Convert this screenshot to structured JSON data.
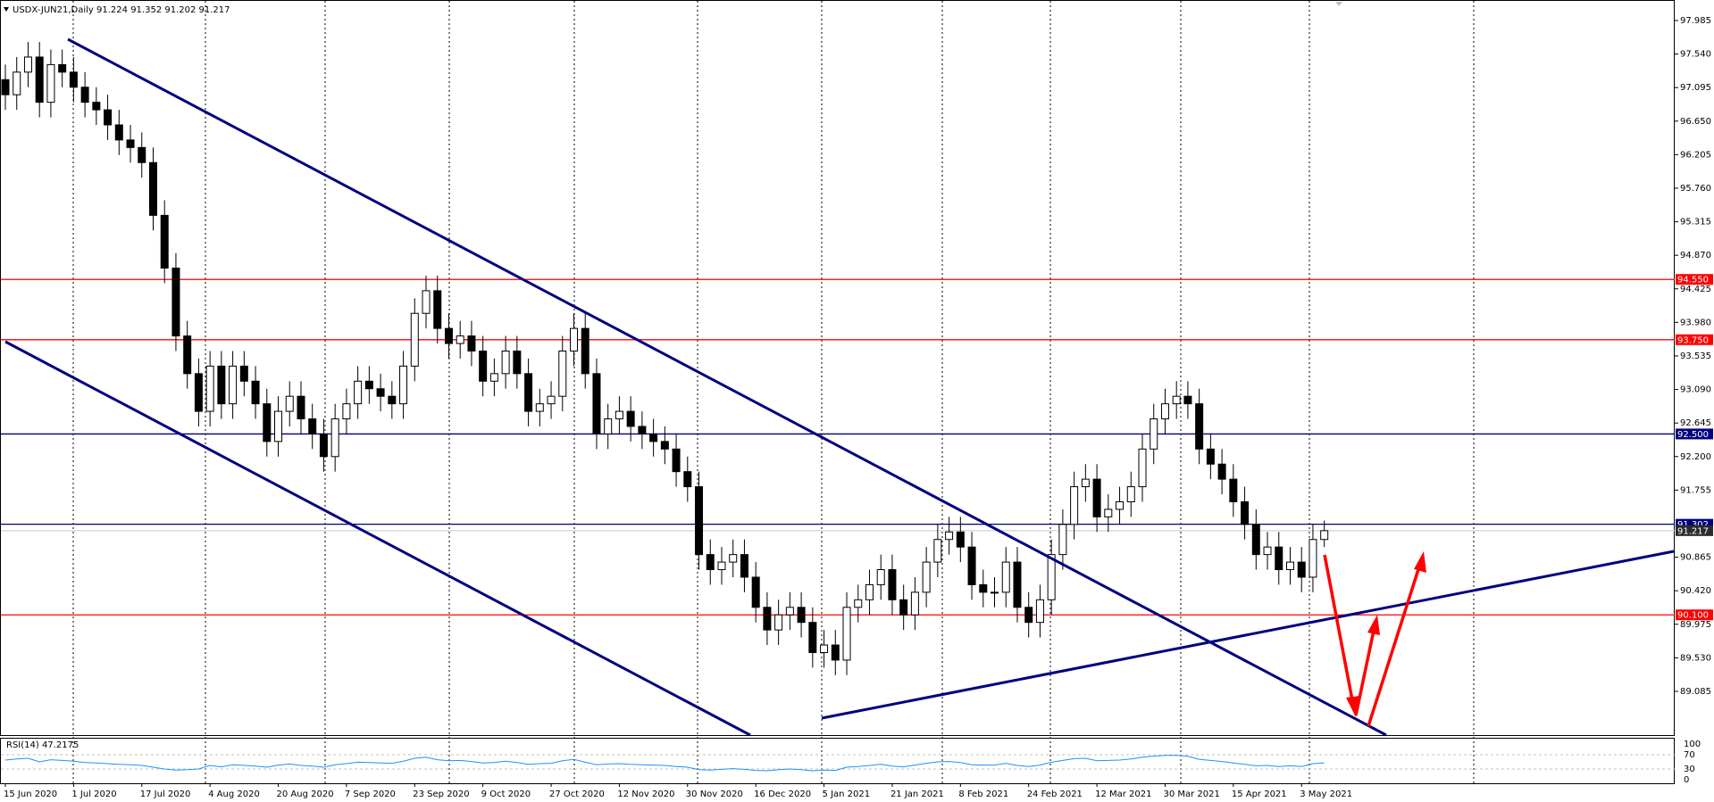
{
  "chart_data": {
    "type": "candlestick",
    "title": "USDX-JUN21,Daily  91.224 91.352 91.202 91.217",
    "categories": [
      "15 Jun 2020",
      null,
      null,
      null,
      null,
      null,
      "1 Jul 2020",
      null,
      null,
      null,
      null,
      null,
      "17 Jul 2020",
      null,
      null,
      null,
      null,
      null,
      "4 Aug 2020",
      null,
      null,
      null,
      null,
      null,
      "20 Aug 2020",
      null,
      null,
      null,
      null,
      null,
      "7 Sep 2020",
      null,
      null,
      null,
      null,
      null,
      "23 Sep 2020",
      null,
      null,
      null,
      null,
      null,
      "9 Oct 2020",
      null,
      null,
      null,
      null,
      null,
      "27 Oct 2020",
      null,
      null,
      null,
      null,
      null,
      "12 Nov 2020",
      null,
      null,
      null,
      null,
      null,
      "30 Nov 2020",
      null,
      null,
      null,
      null,
      null,
      "16 Dec 2020",
      null,
      null,
      null,
      null,
      null,
      "5 Jan 2021",
      null,
      null,
      null,
      null,
      null,
      "21 Jan 2021",
      null,
      null,
      null,
      null,
      null,
      "8 Feb 2021",
      null,
      null,
      null,
      null,
      null,
      "24 Feb 2021",
      null,
      null,
      null,
      null,
      null,
      "12 Mar 2021",
      null,
      null,
      null,
      null,
      null,
      "30 Mar 2021",
      null,
      null,
      null,
      null,
      null,
      "15 Apr 2021",
      null,
      null,
      null,
      null,
      null,
      "3 May 2021",
      null,
      null
    ],
    "open": [
      97.2,
      97.0,
      97.3,
      97.5,
      96.9,
      97.4,
      97.3,
      97.1,
      96.9,
      96.8,
      96.6,
      96.4,
      96.3,
      96.1,
      95.4,
      94.7,
      93.8,
      93.3,
      92.8,
      93.4,
      92.9,
      93.4,
      93.2,
      92.9,
      92.4,
      92.8,
      93.0,
      92.7,
      92.5,
      92.2,
      92.7,
      92.9,
      93.2,
      93.1,
      93.0,
      92.9,
      93.4,
      94.1,
      94.4,
      93.9,
      93.7,
      93.8,
      93.6,
      93.2,
      93.3,
      93.6,
      93.3,
      92.8,
      92.9,
      93.0,
      93.6,
      93.9,
      93.3,
      92.5,
      92.7,
      92.8,
      92.6,
      92.5,
      92.4,
      92.3,
      92.0,
      91.8,
      90.9,
      90.7,
      90.8,
      90.9,
      90.6,
      90.2,
      89.9,
      90.1,
      90.2,
      90.0,
      89.6,
      89.7,
      89.5,
      90.2,
      90.3,
      90.5,
      90.7,
      90.3,
      90.1,
      90.4,
      90.8,
      91.1,
      91.2,
      91.0,
      90.5,
      90.4,
      90.4,
      90.8,
      90.2,
      90.0,
      90.3,
      90.9,
      91.3,
      91.8,
      91.9,
      91.4,
      91.5,
      91.6,
      91.8,
      92.3,
      92.7,
      92.9,
      93.0,
      92.9,
      92.3,
      92.1,
      91.9,
      91.6,
      91.3,
      90.9,
      91.0,
      90.7,
      90.8,
      90.6,
      91.1
    ],
    "high": [
      97.4,
      97.5,
      97.7,
      97.7,
      97.6,
      97.6,
      97.5,
      97.3,
      97.1,
      97.0,
      96.8,
      96.6,
      96.5,
      96.3,
      95.6,
      94.9,
      94.0,
      93.5,
      93.6,
      93.6,
      93.6,
      93.6,
      93.4,
      93.1,
      93.0,
      93.2,
      93.2,
      92.9,
      92.7,
      92.9,
      93.1,
      93.4,
      93.4,
      93.3,
      93.2,
      93.6,
      94.3,
      94.6,
      94.6,
      94.1,
      94.0,
      94.0,
      93.8,
      93.5,
      93.8,
      93.8,
      93.5,
      93.1,
      93.2,
      93.8,
      94.1,
      94.1,
      93.5,
      92.9,
      93.0,
      93.0,
      92.8,
      92.7,
      92.6,
      92.5,
      92.2,
      92.0,
      91.1,
      91.0,
      91.1,
      91.1,
      90.8,
      90.4,
      90.3,
      90.4,
      90.4,
      90.2,
      89.9,
      89.9,
      90.4,
      90.5,
      90.7,
      90.9,
      90.9,
      90.5,
      90.6,
      91.0,
      91.3,
      91.4,
      91.4,
      91.2,
      90.7,
      90.6,
      91.0,
      91.0,
      90.4,
      90.5,
      91.1,
      91.5,
      92.0,
      92.1,
      92.1,
      91.7,
      91.8,
      92.0,
      92.5,
      92.9,
      93.1,
      93.2,
      93.2,
      93.1,
      92.5,
      92.3,
      92.1,
      91.8,
      91.5,
      91.2,
      91.2,
      91.0,
      91.0,
      91.3,
      91.352
    ],
    "low": [
      96.8,
      96.8,
      97.1,
      96.7,
      96.7,
      97.1,
      96.9,
      96.7,
      96.6,
      96.4,
      96.2,
      96.1,
      95.9,
      95.2,
      94.5,
      93.6,
      93.1,
      92.6,
      92.6,
      92.7,
      92.7,
      93.0,
      92.7,
      92.2,
      92.2,
      92.6,
      92.5,
      92.3,
      92.0,
      92.0,
      92.5,
      92.7,
      92.9,
      92.8,
      92.7,
      92.7,
      93.2,
      93.9,
      93.7,
      93.5,
      93.5,
      93.4,
      93.0,
      93.0,
      93.1,
      93.1,
      92.6,
      92.6,
      92.7,
      92.8,
      93.4,
      93.1,
      92.3,
      92.3,
      92.5,
      92.4,
      92.3,
      92.2,
      92.1,
      91.8,
      91.6,
      90.7,
      90.5,
      90.5,
      90.6,
      90.4,
      90.0,
      89.7,
      89.7,
      89.9,
      89.8,
      89.4,
      89.4,
      89.3,
      89.3,
      90.0,
      90.1,
      90.3,
      90.1,
      89.9,
      89.9,
      90.2,
      90.6,
      90.9,
      90.8,
      90.3,
      90.2,
      90.2,
      90.2,
      90.0,
      89.8,
      89.8,
      90.1,
      90.7,
      91.1,
      91.6,
      91.2,
      91.2,
      91.3,
      91.4,
      91.6,
      92.1,
      92.5,
      92.7,
      92.7,
      92.1,
      91.9,
      91.7,
      91.4,
      91.1,
      90.7,
      90.7,
      90.5,
      90.5,
      90.4,
      90.4,
      91.0
    ],
    "close": [
      97.0,
      97.3,
      97.5,
      96.9,
      97.4,
      97.3,
      97.1,
      96.9,
      96.8,
      96.6,
      96.4,
      96.3,
      96.1,
      95.4,
      94.7,
      93.8,
      93.3,
      92.8,
      93.4,
      92.9,
      93.4,
      93.2,
      92.9,
      92.4,
      92.8,
      93.0,
      92.7,
      92.5,
      92.2,
      92.7,
      92.9,
      93.2,
      93.1,
      93.0,
      92.9,
      93.4,
      94.1,
      94.4,
      93.9,
      93.7,
      93.8,
      93.6,
      93.2,
      93.3,
      93.6,
      93.3,
      92.8,
      92.9,
      93.0,
      93.6,
      93.9,
      93.3,
      92.5,
      92.7,
      92.8,
      92.6,
      92.5,
      92.4,
      92.3,
      92.0,
      91.8,
      90.9,
      90.7,
      90.8,
      90.9,
      90.6,
      90.2,
      89.9,
      90.1,
      90.2,
      90.0,
      89.6,
      89.7,
      89.5,
      90.2,
      90.3,
      90.5,
      90.7,
      90.3,
      90.1,
      90.4,
      90.8,
      91.1,
      91.2,
      91.0,
      90.5,
      90.4,
      90.4,
      90.8,
      90.2,
      90.0,
      90.3,
      90.9,
      91.3,
      91.8,
      91.9,
      91.4,
      91.5,
      91.6,
      91.8,
      92.3,
      92.7,
      92.9,
      93.0,
      92.9,
      92.3,
      92.1,
      91.9,
      91.6,
      91.3,
      90.9,
      91.0,
      90.7,
      90.8,
      90.6,
      91.1,
      91.217
    ],
    "up_color": "#ffffff",
    "down_color": "#000000",
    "ylim": [
      88.505,
      98.245
    ],
    "yticks": [
      97.985,
      {
        "value": 97.54,
        "label": "97.540"
      },
      97.095,
      {
        "value": 96.65,
        "label": "96.650"
      },
      96.205,
      {
        "value": 95.76,
        "label": "95.760"
      },
      95.315,
      {
        "value": 94.87,
        "label": "94.870"
      },
      94.425,
      {
        "value": 93.98,
        "label": "93.980"
      },
      93.535,
      {
        "value": 93.09,
        "label": "93.090"
      },
      92.645,
      {
        "value": 92.2,
        "label": "92.200"
      },
      91.755,
      90.865,
      {
        "value": 90.42,
        "label": "90.420"
      },
      89.975,
      {
        "value": 89.53,
        "label": "89.530"
      },
      89.085
    ],
    "levels": [
      {
        "value": 94.55,
        "label": "94.550",
        "color": "#ff0000"
      },
      {
        "value": 93.75,
        "label": "93.750",
        "color": "#ff0000"
      },
      {
        "value": 92.5,
        "label": "92.500",
        "color": "#000080"
      },
      {
        "value": 91.302,
        "label": "91.302",
        "color": "#000080"
      },
      {
        "value": 91.217,
        "label": "91.217",
        "color": "#2b2b2b"
      },
      {
        "value": 90.1,
        "label": "90.100",
        "color": "#ff0000"
      }
    ],
    "indicator": {
      "title": "RSI(14) 47.2175",
      "color": "#1e90ff",
      "ylim": [
        -10,
        115
      ],
      "yticks": [
        100,
        70,
        30,
        0
      ],
      "values": [
        55,
        58,
        60,
        50,
        56,
        54,
        52,
        48,
        47,
        45,
        43,
        42,
        40,
        35,
        30,
        27,
        28,
        30,
        40,
        36,
        42,
        40,
        38,
        35,
        41,
        44,
        40,
        38,
        35,
        42,
        45,
        49,
        48,
        47,
        46,
        52,
        60,
        63,
        56,
        53,
        54,
        51,
        47,
        48,
        52,
        48,
        43,
        45,
        46,
        53,
        57,
        49,
        42,
        44,
        45,
        43,
        42,
        41,
        40,
        37,
        35,
        28,
        27,
        29,
        31,
        29,
        26,
        25,
        28,
        30,
        28,
        25,
        27,
        26,
        35,
        37,
        40,
        43,
        38,
        36,
        41,
        46,
        50,
        51,
        48,
        42,
        41,
        41,
        46,
        40,
        37,
        41,
        49,
        54,
        59,
        60,
        53,
        54,
        55,
        58,
        63,
        66,
        68,
        68,
        66,
        57,
        54,
        51,
        47,
        43,
        39,
        40,
        37,
        39,
        37,
        45,
        47.2175
      ]
    }
  }
}
